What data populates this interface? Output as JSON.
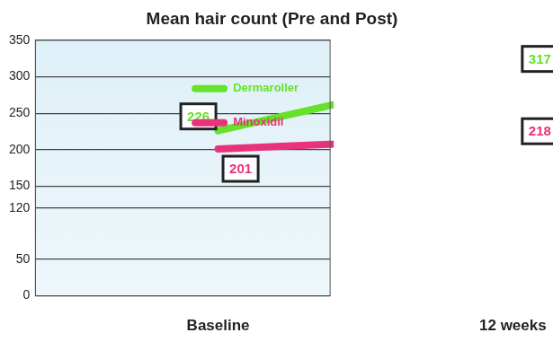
{
  "chart_data": {
    "type": "line",
    "title": "Mean hair count (Pre and Post)",
    "categories": [
      "Baseline",
      "12 weeks"
    ],
    "series": [
      {
        "name": "Dermaroller",
        "color": "#66e22a",
        "values": [
          226,
          317
        ]
      },
      {
        "name": "Minoxidil",
        "color": "#e8327a",
        "values": [
          201,
          218
        ]
      }
    ],
    "ylim": [
      0,
      350
    ],
    "yticks": [
      0,
      50,
      120,
      150,
      200,
      250,
      300,
      350
    ],
    "grid": true,
    "legend": "top right",
    "data_labels": true
  }
}
